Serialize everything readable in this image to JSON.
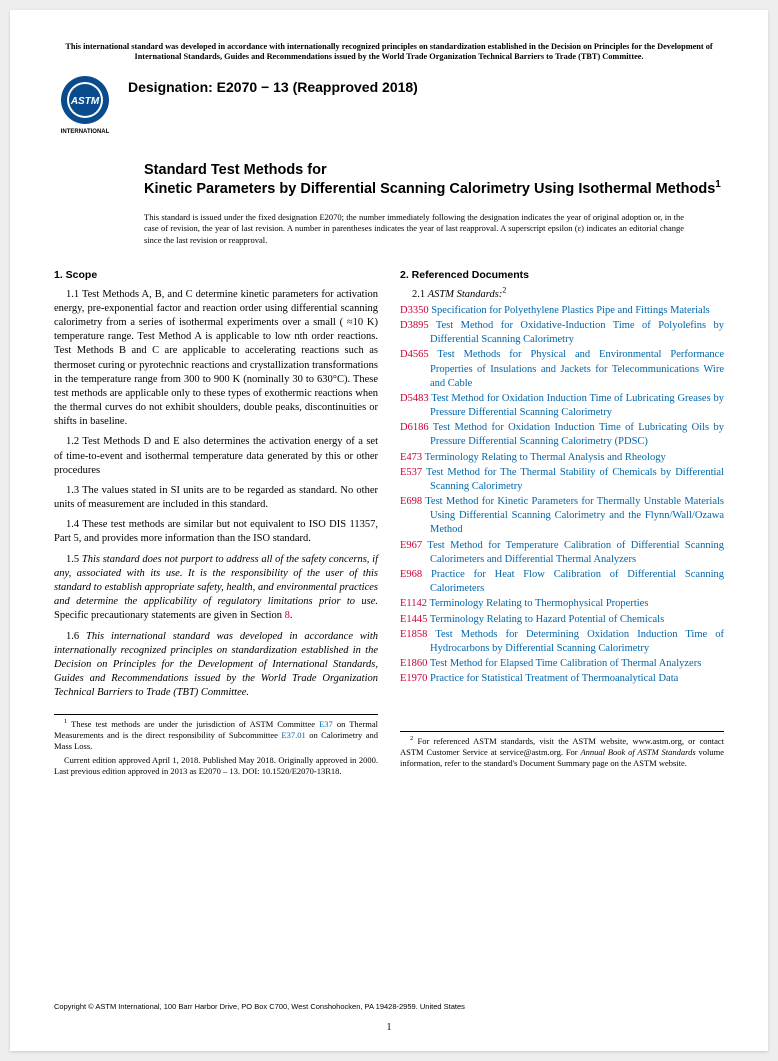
{
  "disclaimer": "This international standard was developed in accordance with internationally recognized principles on standardization established in the Decision on Principles for the Development of International Standards, Guides and Recommendations issued by the World Trade Organization Technical Barriers to Trade (TBT) Committee.",
  "logo_text_int": "INTERNATIONAL",
  "designation": "Designation: E2070 − 13 (Reapproved 2018)",
  "title_prefix": "Standard Test Methods for",
  "title_main": "Kinetic Parameters by Differential Scanning Calorimetry Using Isothermal Methods",
  "title_sup": "1",
  "issued_note": "This standard is issued under the fixed designation E2070; the number immediately following the designation indicates the year of original adoption or, in the case of revision, the year of last revision. A number in parentheses indicates the year of last reapproval. A superscript epsilon (ε) indicates an editorial change since the last revision or reapproval.",
  "scope_head": "1. Scope",
  "scope": {
    "p1": "1.1 Test Methods A, B, and C determine kinetic parameters for activation energy, pre-exponential factor and reaction order using differential scanning calorimetry from a series of isothermal experiments over a small ( ≈10 K) temperature range. Test Method A is applicable to low nth order reactions. Test Methods B and C are applicable to accelerating reactions such as thermoset curing or pyrotechnic reactions and crystallization transformations in the temperature range from 300 to 900 K (nominally 30 to 630°C). These test methods are applicable only to these types of exothermic reactions when the thermal curves do not exhibit shoulders, double peaks, discontinuities or shifts in baseline.",
    "p2": "1.2 Test Methods D and E also determines the activation energy of a set of time-to-event and isothermal temperature data generated by this or other procedures",
    "p3": "1.3 The values stated in SI units are to be regarded as standard. No other units of measurement are included in this standard.",
    "p4": "1.4 These test methods are similar but not equivalent to ISO DIS 11357, Part 5, and provides more information than the ISO standard.",
    "p5a": "1.5 ",
    "p5b": "This standard does not purport to address all of the safety concerns, if any, associated with its use. It is the responsibility of the user of this standard to establish appropriate safety, health, and environmental practices and determine the applicability of regulatory limitations prior to use.",
    "p5c": " Specific precautionary statements are given in Section ",
    "p5d": "8",
    "p5e": ".",
    "p6a": "1.6 ",
    "p6b": "This international standard was developed in accordance with internationally recognized principles on standardization established in the Decision on Principles for the Development of International Standards, Guides and Recommendations issued by the World Trade Organization Technical Barriers to Trade (TBT) Committee."
  },
  "ref_head": "2. Referenced Documents",
  "ref_sub_a": "2.1 ",
  "ref_sub_b": "ASTM Standards:",
  "ref_sub_sup": "2",
  "refs": [
    {
      "code": "D3350",
      "desc": "Specification for Polyethylene Plastics Pipe and Fittings Materials"
    },
    {
      "code": "D3895",
      "desc": "Test Method for Oxidative-Induction Time of Polyolefins by Differential Scanning Calorimetry"
    },
    {
      "code": "D4565",
      "desc": "Test Methods for Physical and Environmental Performance Properties of Insulations and Jackets for Telecommunications Wire and Cable"
    },
    {
      "code": "D5483",
      "desc": "Test Method for Oxidation Induction Time of Lubricating Greases by Pressure Differential Scanning Calorimetry"
    },
    {
      "code": "D6186",
      "desc": "Test Method for Oxidation Induction Time of Lubricating Oils by Pressure Differential Scanning Calorimetry (PDSC)"
    },
    {
      "code": "E473",
      "desc": "Terminology Relating to Thermal Analysis and Rheology"
    },
    {
      "code": "E537",
      "desc": "Test Method for The Thermal Stability of Chemicals by Differential Scanning Calorimetry"
    },
    {
      "code": "E698",
      "desc": "Test Method for Kinetic Parameters for Thermally Unstable Materials Using Differential Scanning Calorimetry and the Flynn/Wall/Ozawa Method"
    },
    {
      "code": "E967",
      "desc": "Test Method for Temperature Calibration of Differential Scanning Calorimeters and Differential Thermal Analyzers"
    },
    {
      "code": "E968",
      "desc": "Practice for Heat Flow Calibration of Differential Scanning Calorimeters"
    },
    {
      "code": "E1142",
      "desc": "Terminology Relating to Thermophysical Properties"
    },
    {
      "code": "E1445",
      "desc": "Terminology Relating to Hazard Potential of Chemicals"
    },
    {
      "code": "E1858",
      "desc": "Test Methods for Determining Oxidation Induction Time of Hydrocarbons by Differential Scanning Calorimetry"
    },
    {
      "code": "E1860",
      "desc": "Test Method for Elapsed Time Calibration of Thermal Analyzers"
    },
    {
      "code": "E1970",
      "desc": "Practice for Statistical Treatment of Thermoanalytical Data"
    }
  ],
  "fn1": {
    "sup": "1",
    "a": " These test methods are under the jurisdiction of ASTM Committee ",
    "b": "E37",
    "c": " on Thermal Measurements and is the direct responsibility of Subcommittee ",
    "d": "E37.01",
    "e": " on Calorimetry and Mass Loss.",
    "f": "Current edition approved April 1, 2018. Published May 2018. Originally approved in 2000. Last previous edition approved in 2013 as E2070 – 13. DOI: 10.1520/E2070-13R18."
  },
  "fn2": {
    "sup": "2",
    "a": " For referenced ASTM standards, visit the ASTM website, www.astm.org, or contact ASTM Customer Service at service@astm.org. For ",
    "b": "Annual Book of ASTM Standards",
    "c": " volume information, refer to the standard's Document Summary page on the ASTM website."
  },
  "copyright": "Copyright © ASTM International, 100 Barr Harbor Drive, PO Box C700, West Conshohocken, PA 19428-2959. United States",
  "pagenum": "1"
}
